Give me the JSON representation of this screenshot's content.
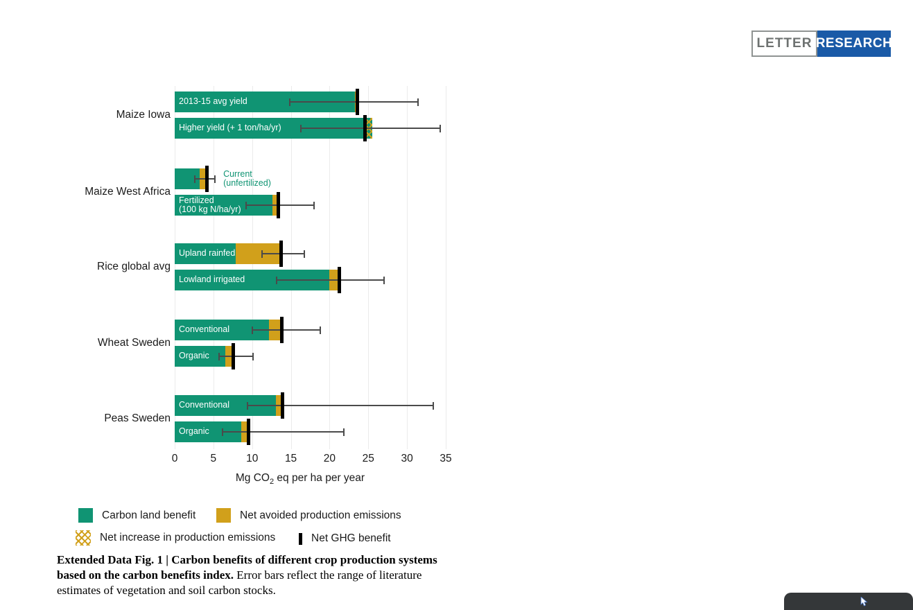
{
  "header": {
    "letter_label": "LETTER",
    "research_label": "RESEARCH"
  },
  "colors": {
    "bar_green": "#109473",
    "bar_gold": "#d1a01b",
    "marker_black": "#000000",
    "error_gray": "#4a4a4a",
    "gridline": "#ebebeb",
    "research_blue": "#1a5aa7",
    "letter_gray": "#6e7271",
    "overlay_dark": "#343739"
  },
  "chart_data": {
    "type": "bar",
    "orientation": "horizontal",
    "xlim": [
      0,
      35
    ],
    "xticks": [
      0,
      5,
      10,
      15,
      20,
      25,
      30,
      35
    ],
    "grid": true,
    "xlabel_parts": {
      "pre": "Mg CO",
      "sub": "2",
      "post": " eq per ha per year"
    },
    "units": "Mg CO2 eq per ha per year",
    "groups": [
      {
        "label": "Maize Iowa",
        "bars": [
          {
            "label": "2013-15 avg yield",
            "label_position": "inside",
            "carbon_land_benefit": 23.3,
            "net_avoided_production_emissions": 0.3,
            "net_increase_production_emissions": 0,
            "net_ghg_benefit": 23.6,
            "error_range": [
              14.9,
              31.4
            ]
          },
          {
            "label": "Higher yield (+ 1 ton/ha/yr)",
            "label_position": "inside",
            "carbon_land_benefit": 25.5,
            "net_avoided_production_emissions": 0,
            "net_increase_production_emissions": 0.9,
            "net_ghg_benefit": 24.6,
            "error_range": [
              16.3,
              34.3
            ]
          }
        ]
      },
      {
        "label": "Maize West Africa",
        "bars": [
          {
            "label": "Current\n(unfertilized)",
            "label_position": "outside",
            "carbon_land_benefit": 3.2,
            "net_avoided_production_emissions": 1.0,
            "net_increase_production_emissions": 0,
            "net_ghg_benefit": 4.2,
            "error_range": [
              2.6,
              5.2
            ]
          },
          {
            "label": "Fertilized\n(100 kg N/ha/yr)",
            "label_position": "inside",
            "carbon_land_benefit": 12.6,
            "net_avoided_production_emissions": 0.8,
            "net_increase_production_emissions": 0,
            "net_ghg_benefit": 13.4,
            "error_range": [
              9.2,
              18.0
            ]
          }
        ]
      },
      {
        "label": "Rice global avg",
        "bars": [
          {
            "label": "Upland rainfed",
            "label_position": "inside",
            "carbon_land_benefit": 7.9,
            "net_avoided_production_emissions": 5.8,
            "net_increase_production_emissions": 0,
            "net_ghg_benefit": 13.7,
            "error_range": [
              11.3,
              16.7
            ]
          },
          {
            "label": "Lowland irrigated",
            "label_position": "inside",
            "carbon_land_benefit": 20.0,
            "net_avoided_production_emissions": 1.3,
            "net_increase_production_emissions": 0,
            "net_ghg_benefit": 21.3,
            "error_range": [
              13.2,
              27.0
            ]
          }
        ]
      },
      {
        "label": "Wheat Sweden",
        "bars": [
          {
            "label": "Conventional",
            "label_position": "inside",
            "carbon_land_benefit": 12.2,
            "net_avoided_production_emissions": 1.6,
            "net_increase_production_emissions": 0,
            "net_ghg_benefit": 13.8,
            "error_range": [
              10.0,
              18.8
            ]
          },
          {
            "label": "Organic",
            "label_position": "inside",
            "carbon_land_benefit": 6.5,
            "net_avoided_production_emissions": 1.1,
            "net_increase_production_emissions": 0,
            "net_ghg_benefit": 7.6,
            "error_range": [
              5.7,
              10.1
            ]
          }
        ]
      },
      {
        "label": "Peas Sweden",
        "bars": [
          {
            "label": "Conventional",
            "label_position": "inside",
            "carbon_land_benefit": 13.1,
            "net_avoided_production_emissions": 0.8,
            "net_increase_production_emissions": 0,
            "net_ghg_benefit": 13.9,
            "error_range": [
              9.4,
              33.4
            ]
          },
          {
            "label": "Organic",
            "label_position": "inside",
            "carbon_land_benefit": 8.6,
            "net_avoided_production_emissions": 0.9,
            "net_increase_production_emissions": 0,
            "net_ghg_benefit": 9.5,
            "error_range": [
              6.2,
              21.8
            ]
          }
        ]
      }
    ],
    "legend": [
      {
        "label": "Carbon land benefit",
        "swatch": "green-square"
      },
      {
        "label": "Net avoided production emissions",
        "swatch": "gold-square"
      },
      {
        "label": "Net increase in production emissions",
        "swatch": "gold-hatch"
      },
      {
        "label": "Net GHG benefit",
        "swatch": "black-bar"
      }
    ]
  },
  "caption": {
    "bold": "Extended Data Fig. 1 | Carbon benefits of different crop production systems based on the carbon benefits index.",
    "regular": " Error bars reflect the range of literature estimates of vegetation and soil carbon stocks."
  }
}
